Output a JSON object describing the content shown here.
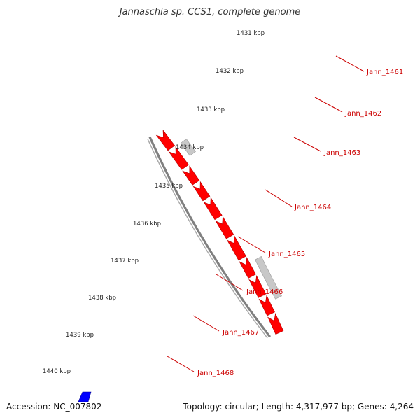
{
  "title": "Jannaschia sp. CCS1, complete genome",
  "accession": "Accession: NC_007802",
  "summary": "Topology: circular; Length: 4,317,977 bp; Genes: 4,264",
  "colors": {
    "forward_gene": "#ff0000",
    "pseudogene": "#c8c8c8",
    "other_feature": "#0000ff",
    "backbone": "#808080",
    "ticks": "#008000",
    "labels": "#cc0000"
  },
  "kbp_labels": [
    "1431 kbp",
    "1432 kbp",
    "1433 kbp",
    "1434 kbp",
    "1435 kbp",
    "1436 kbp",
    "1437 kbp",
    "1438 kbp",
    "1439 kbp",
    "1440 kbp"
  ],
  "gene_labels": [
    "Jann_1461",
    "Jann_1462",
    "Jann_1463",
    "Jann_1464",
    "Jann_1465",
    "Jann_1466",
    "Jann_1467",
    "Jann_1468"
  ]
}
